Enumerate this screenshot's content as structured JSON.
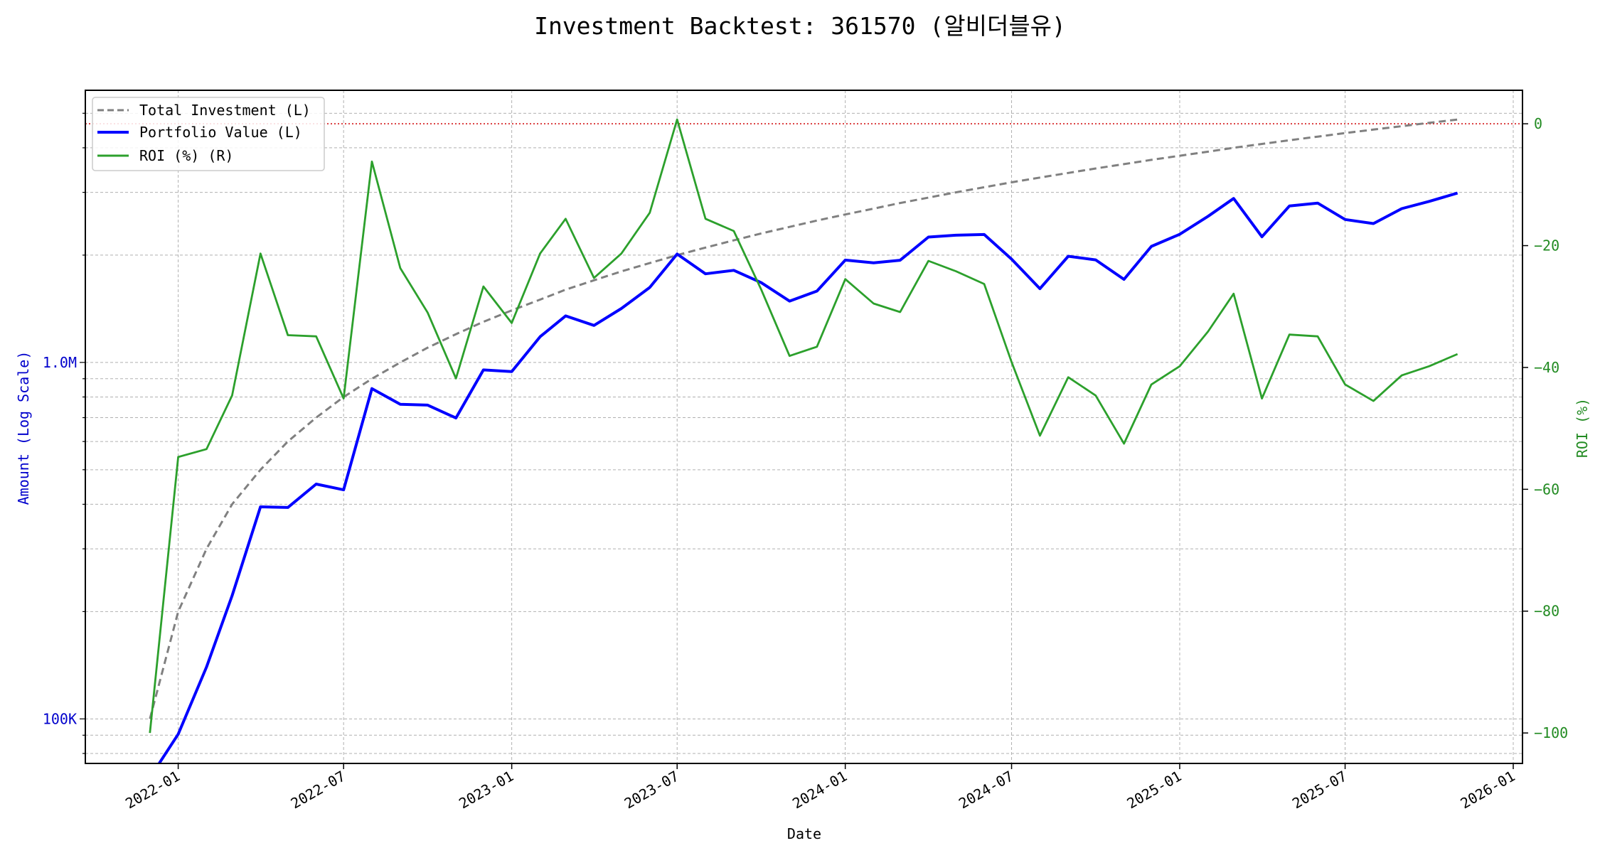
{
  "chart_data": {
    "type": "line",
    "title": "Investment Backtest: 361570 (알비더블유)",
    "xlabel": "Date",
    "ylabel_left": "Amount (Log Scale)",
    "ylabel_right": "ROI (%)",
    "left_scale": "log",
    "left_ylim": [
      75000,
      5800000
    ],
    "right_ylim": [
      -105,
      5.5
    ],
    "grid": true,
    "legend_placement": "top-left",
    "x_ticks": [
      "2022-01",
      "2022-07",
      "2023-01",
      "2023-07",
      "2024-01",
      "2024-07",
      "2025-01",
      "2025-07",
      "2026-01"
    ],
    "left_ticks": [
      {
        "value": 100000,
        "label": "100K"
      },
      {
        "value": 1000000,
        "label": "1.0M"
      }
    ],
    "right_ticks": [
      0,
      -20,
      -40,
      -60,
      -80,
      -100
    ],
    "reference_line": {
      "axis": "right",
      "value": 0,
      "color": "#d62728",
      "style": "dotted"
    },
    "x": [
      "2021-12",
      "2022-01",
      "2022-02",
      "2022-03",
      "2022-04",
      "2022-05",
      "2022-06",
      "2022-07",
      "2022-08",
      "2022-09",
      "2022-10",
      "2022-11",
      "2022-12",
      "2023-01",
      "2023-02",
      "2023-03",
      "2023-04",
      "2023-05",
      "2023-06",
      "2023-07",
      "2023-08",
      "2023-09",
      "2023-10",
      "2023-11",
      "2023-12",
      "2024-01",
      "2024-02",
      "2024-03",
      "2024-04",
      "2024-05",
      "2024-06",
      "2024-07",
      "2024-08",
      "2024-09",
      "2024-10",
      "2024-11",
      "2024-12",
      "2025-01",
      "2025-02",
      "2025-03",
      "2025-04",
      "2025-05",
      "2025-06",
      "2025-07",
      "2025-08",
      "2025-09",
      "2025-10",
      "2025-11"
    ],
    "series": [
      {
        "name": "Total Investment (L)",
        "axis": "left",
        "color": "#808080",
        "style": "dashed",
        "values": [
          100000,
          200000,
          300000,
          400000,
          500000,
          600000,
          700000,
          800000,
          900000,
          1000000,
          1100000,
          1200000,
          1300000,
          1400000,
          1500000,
          1600000,
          1700000,
          1800000,
          1900000,
          2000000,
          2100000,
          2200000,
          2300000,
          2400000,
          2500000,
          2600000,
          2700000,
          2800000,
          2900000,
          3000000,
          3100000,
          3200000,
          3300000,
          3400000,
          3500000,
          3600000,
          3700000,
          3800000,
          3900000,
          4000000,
          4100000,
          4200000,
          4300000,
          4400000,
          4500000,
          4600000,
          4700000,
          4800000
        ]
      },
      {
        "name": "Portfolio Value (L)",
        "axis": "left",
        "color": "#0000ff",
        "style": "solid",
        "values": [
          0,
          90600,
          139800,
          221600,
          393500,
          391800,
          455700,
          439200,
          844200,
          763000,
          759000,
          698400,
          952900,
          942200,
          1180500,
          1350400,
          1269900,
          1416600,
          1622600,
          2014000,
          1772400,
          1812800,
          1674400,
          1485600,
          1585000,
          1937000,
          1903500,
          1934800,
          2247500,
          2274000,
          2284700,
          1948800,
          1610400,
          1985600,
          1939000,
          1710000,
          2116400,
          2287600,
          2570100,
          2884000,
          2250900,
          2746800,
          2799300,
          2516800,
          2452500,
          2700200,
          2829400,
          2985600
        ]
      },
      {
        "name": "ROI (%) (R)",
        "axis": "right",
        "color": "#2ca02c",
        "style": "solid",
        "values": [
          -100,
          -54.7,
          -53.4,
          -44.6,
          -21.3,
          -34.7,
          -34.9,
          -45.1,
          -6.2,
          -23.7,
          -31.0,
          -41.8,
          -26.7,
          -32.7,
          -21.3,
          -15.6,
          -25.3,
          -21.3,
          -14.6,
          0.7,
          -15.6,
          -17.6,
          -27.2,
          -38.1,
          -36.6,
          -25.5,
          -29.5,
          -30.9,
          -22.5,
          -24.2,
          -26.3,
          -39.1,
          -51.2,
          -41.6,
          -44.6,
          -52.5,
          -42.8,
          -39.8,
          -34.1,
          -27.9,
          -45.1,
          -34.6,
          -34.9,
          -42.8,
          -45.5,
          -41.3,
          -39.8,
          -37.8
        ]
      }
    ],
    "colors": {
      "left_axis": "#0000cc",
      "right_axis": "#228b22"
    }
  }
}
